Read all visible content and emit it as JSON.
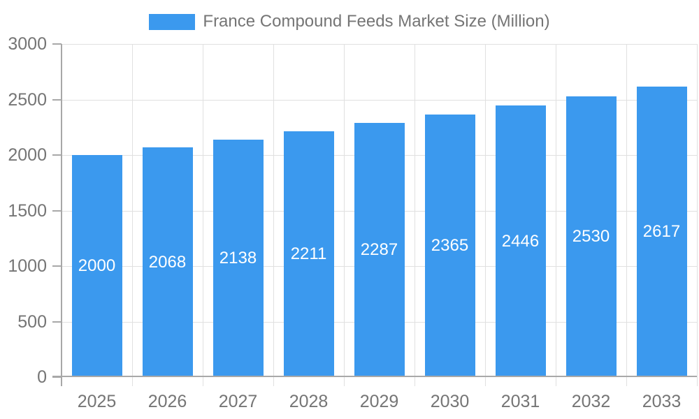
{
  "chart_data": {
    "type": "bar",
    "title": "France Compound Feeds Market Size (Million)",
    "series_name": "France Compound Feeds Market Size (Million)",
    "categories": [
      "2025",
      "2026",
      "2027",
      "2028",
      "2029",
      "2030",
      "2031",
      "2032",
      "2033"
    ],
    "values": [
      2000,
      2068,
      2138,
      2211,
      2287,
      2365,
      2446,
      2530,
      2617
    ],
    "xlabel": "",
    "ylabel": "",
    "ylim": [
      0,
      3000
    ],
    "ytick_step": 500,
    "yticks": [
      0,
      500,
      1000,
      1500,
      2000,
      2500,
      3000
    ],
    "grid": true,
    "legend_position": "top-center",
    "value_labels_position": "inside-center",
    "bar_color": "#3B99EE",
    "value_label_color": "#FFFFFF",
    "text_color": "#757575",
    "axis_color": "#A8A8A8",
    "grid_color": "#E0E0E0"
  }
}
